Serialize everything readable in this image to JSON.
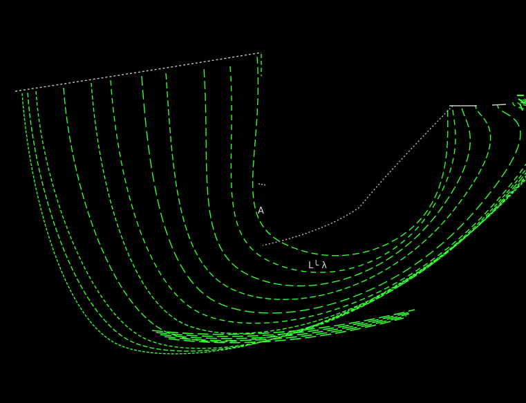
{
  "view": {
    "background_color": "#000000",
    "curve_color": "#33ff33",
    "outline_color": "#c8c8c8",
    "line_style": "dashed"
  },
  "labels": {
    "point_a": "A",
    "point_b": "L╰ λ"
  },
  "icons": {
    "top_right_marker": "scan-marker-icon"
  }
}
